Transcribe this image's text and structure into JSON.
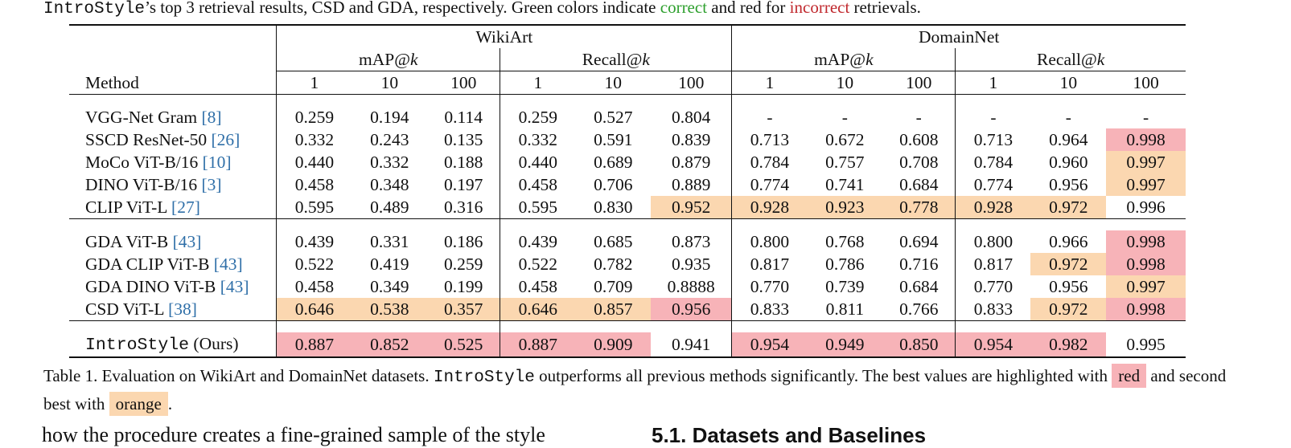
{
  "top_caption": {
    "method": "IntroStyle",
    "text_a": "’s top 3 retrieval results, CSD and GDA, respectively. Green colors indicate ",
    "correct_word": "correct",
    "text_b": " and red for ",
    "incorrect_word": "incorrect",
    "text_c": " retrievals."
  },
  "table": {
    "datasets": [
      "WikiArt",
      "DomainNet"
    ],
    "metric_groups": [
      "mAP@k",
      "Recall@k"
    ],
    "metric_groups_text": [
      {
        "prefix": "mAP@",
        "var": "k"
      },
      {
        "prefix": "Recall@",
        "var": "k"
      }
    ],
    "method_header": "Method",
    "k_values": [
      "1",
      "10",
      "100",
      "1",
      "10",
      "100",
      "1",
      "10",
      "100",
      "1",
      "10",
      "100"
    ],
    "rows": [
      {
        "method": "VGG-Net Gram ",
        "cite": "[8]",
        "values": [
          "0.259",
          "0.194",
          "0.114",
          "0.259",
          "0.527",
          "0.804",
          "-",
          "-",
          "-",
          "-",
          "-",
          "-"
        ],
        "hl": [
          "",
          "",
          "",
          "",
          "",
          "",
          "",
          "",
          "",
          "",
          "",
          ""
        ]
      },
      {
        "method": "SSCD ResNet-50 ",
        "cite": "[26]",
        "values": [
          "0.332",
          "0.243",
          "0.135",
          "0.332",
          "0.591",
          "0.839",
          "0.713",
          "0.672",
          "0.608",
          "0.713",
          "0.964",
          "0.998"
        ],
        "hl": [
          "",
          "",
          "",
          "",
          "",
          "",
          "",
          "",
          "",
          "",
          "",
          "best"
        ]
      },
      {
        "method": "MoCo ViT-B/16 ",
        "cite": "[10]",
        "values": [
          "0.440",
          "0.332",
          "0.188",
          "0.440",
          "0.689",
          "0.879",
          "0.784",
          "0.757",
          "0.708",
          "0.784",
          "0.960",
          "0.997"
        ],
        "hl": [
          "",
          "",
          "",
          "",
          "",
          "",
          "",
          "",
          "",
          "",
          "",
          "second"
        ]
      },
      {
        "method": "DINO ViT-B/16 ",
        "cite": "[3]",
        "values": [
          "0.458",
          "0.348",
          "0.197",
          "0.458",
          "0.706",
          "0.889",
          "0.774",
          "0.741",
          "0.684",
          "0.774",
          "0.956",
          "0.997"
        ],
        "hl": [
          "",
          "",
          "",
          "",
          "",
          "",
          "",
          "",
          "",
          "",
          "",
          "second"
        ]
      },
      {
        "method": "CLIP ViT-L ",
        "cite": "[27]",
        "values": [
          "0.595",
          "0.489",
          "0.316",
          "0.595",
          "0.830",
          "0.952",
          "0.928",
          "0.923",
          "0.778",
          "0.928",
          "0.972",
          "0.996"
        ],
        "hl": [
          "",
          "",
          "",
          "",
          "",
          "second",
          "second",
          "second",
          "second",
          "second",
          "second",
          ""
        ]
      },
      {
        "method": "GDA ViT-B ",
        "cite": "[43]",
        "values": [
          "0.439",
          "0.331",
          "0.186",
          "0.439",
          "0.685",
          "0.873",
          "0.800",
          "0.768",
          "0.694",
          "0.800",
          "0.966",
          "0.998"
        ],
        "hl": [
          "",
          "",
          "",
          "",
          "",
          "",
          "",
          "",
          "",
          "",
          "",
          "best"
        ]
      },
      {
        "method": "GDA CLIP ViT-B ",
        "cite": "[43]",
        "values": [
          "0.522",
          "0.419",
          "0.259",
          "0.522",
          "0.782",
          "0.935",
          "0.817",
          "0.786",
          "0.716",
          "0.817",
          "0.972",
          "0.998"
        ],
        "hl": [
          "",
          "",
          "",
          "",
          "",
          "",
          "",
          "",
          "",
          "",
          "second",
          "best"
        ]
      },
      {
        "method": "GDA DINO ViT-B ",
        "cite": "[43]",
        "values": [
          "0.458",
          "0.349",
          "0.199",
          "0.458",
          "0.709",
          "0.8888",
          "0.770",
          "0.739",
          "0.684",
          "0.770",
          "0.956",
          "0.997"
        ],
        "hl": [
          "",
          "",
          "",
          "",
          "",
          "",
          "",
          "",
          "",
          "",
          "",
          "second"
        ]
      },
      {
        "method": "CSD ViT-L ",
        "cite": "[38]",
        "values": [
          "0.646",
          "0.538",
          "0.357",
          "0.646",
          "0.857",
          "0.956",
          "0.833",
          "0.811",
          "0.766",
          "0.833",
          "0.972",
          "0.998"
        ],
        "hl": [
          "second",
          "second",
          "second",
          "second",
          "second",
          "best",
          "",
          "",
          "",
          "",
          "second",
          "best"
        ]
      },
      {
        "method": "IntroStyle",
        "method_suffix": " (Ours)",
        "cite": "",
        "values": [
          "0.887",
          "0.852",
          "0.525",
          "0.887",
          "0.909",
          "0.941",
          "0.954",
          "0.949",
          "0.850",
          "0.954",
          "0.982",
          "0.995"
        ],
        "hl": [
          "best",
          "best",
          "best",
          "best",
          "best",
          "",
          "best",
          "best",
          "best",
          "best",
          "best",
          ""
        ]
      }
    ]
  },
  "bottom_caption": {
    "part1": "Table 1. Evaluation on WikiArt and DomainNet datasets. ",
    "method": "IntroStyle",
    "part2": " outperforms all previous methods significantly. The best values are highlighted with ",
    "best_label": "red",
    "part3": " and second best with ",
    "second_label": "orange",
    "part4": "."
  },
  "cut_text": {
    "left": "how the procedure creates a fine-grained sample of the style",
    "right": "5.1. Datasets and Baselines"
  },
  "colors": {
    "best": "#f7b3b8",
    "second": "#fbd7b0",
    "correct": "#2ea02e",
    "incorrect": "#c0282d",
    "cite": "#2f6fa8"
  }
}
